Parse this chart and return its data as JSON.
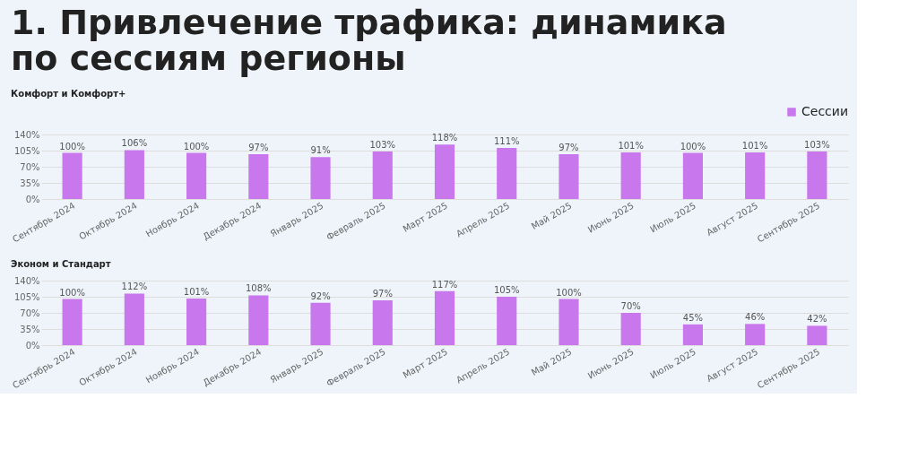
{
  "chart_data": [
    {
      "type": "bar",
      "title": "1. Привлечение трафика: динамика по сессиям регионы",
      "subtitle": "Комфорт и Комфорт+",
      "categories": [
        "Сентябрь 2024",
        "Октябрь 2024",
        "Ноябрь 2024",
        "Декабрь 2024",
        "Январь 2025",
        "Февраль 2025",
        "Март 2025",
        "Апрель 2025",
        "Май 2025",
        "Июнь 2025",
        "Июль 2025",
        "Август 2025",
        "Сентябрь 2025"
      ],
      "series": [
        {
          "name": "Сессии",
          "color": "#c977ec",
          "values": [
            100,
            106,
            100,
            97,
            91,
            103,
            118,
            111,
            97,
            101,
            100,
            101,
            103
          ],
          "value_labels": [
            "100%",
            "106%",
            "100%",
            "97%",
            "91%",
            "103%",
            "118%",
            "111%",
            "97%",
            "101%",
            "100%",
            "101%",
            "103%"
          ]
        }
      ],
      "ylim": [
        0,
        140
      ],
      "yticks": [
        {
          "value": 0,
          "label": "0%"
        },
        {
          "value": 35,
          "label": "35%"
        },
        {
          "value": 70,
          "label": "70%"
        },
        {
          "value": 105,
          "label": "105%"
        },
        {
          "value": 140,
          "label": "140%"
        }
      ],
      "grid": "y",
      "legend": "top right"
    },
    {
      "type": "bar",
      "title": "Эконом и Стандарт",
      "categories": [
        "Сентябрь 2024",
        "Октябрь 2024",
        "Ноябрь 2024",
        "Декабрь 2024",
        "Январь 2025",
        "Февраль 2025",
        "Март 2025",
        "Апрель 2025",
        "Май 2025",
        "Июнь 2025",
        "Июль 2025",
        "Август 2025",
        "Сентябрь 2025"
      ],
      "series": [
        {
          "color": "#c977ec",
          "values": [
            100,
            112,
            101,
            108,
            92,
            97,
            117,
            105,
            100,
            70,
            45,
            46,
            42
          ],
          "value_labels": [
            "100%",
            "112%",
            "101%",
            "108%",
            "92%",
            "97%",
            "117%",
            "105%",
            "100%",
            "70%",
            "45%",
            "46%",
            "42%"
          ]
        }
      ],
      "ylim": [
        0,
        140
      ],
      "yticks": [
        {
          "value": 0,
          "label": "0%"
        },
        {
          "value": 35,
          "label": "35%"
        },
        {
          "value": 70,
          "label": "70%"
        },
        {
          "value": 105,
          "label": "105%"
        },
        {
          "value": 140,
          "label": "140%"
        }
      ],
      "grid": "y"
    }
  ]
}
